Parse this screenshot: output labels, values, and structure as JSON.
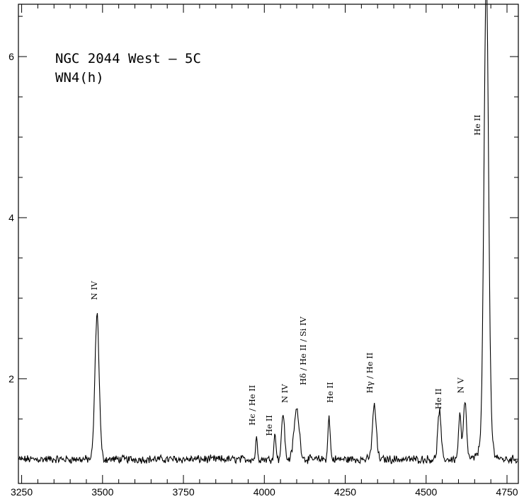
{
  "chart_data": {
    "type": "line",
    "title_lines": [
      "NGC 2044 West – 5C",
      "WN4(h)"
    ],
    "xlim": [
      3240,
      4785
    ],
    "ylim": [
      0.7,
      6.65
    ],
    "x_ticks": [
      3250,
      3500,
      3750,
      4000,
      4250,
      4500,
      4750
    ],
    "y_ticks": [
      2,
      4,
      6
    ],
    "x_minor_step": 50,
    "y_minor_step": 0.5,
    "continuum": 1.0,
    "noise_amplitude": 0.04,
    "grid": false,
    "legend": "none",
    "emission_lines": [
      {
        "x": 3483,
        "peak": 1.8,
        "sigma": 6.5
      },
      {
        "x": 3976,
        "peak": 0.26,
        "sigma": 3.0
      },
      {
        "x": 4033,
        "peak": 0.3,
        "sigma": 3.5
      },
      {
        "x": 4058,
        "peak": 0.58,
        "sigma": 4.5
      },
      {
        "x": 4100,
        "peak": 0.62,
        "sigma": 8.0
      },
      {
        "x": 4200,
        "peak": 0.52,
        "sigma": 3.5
      },
      {
        "x": 4340,
        "peak": 0.66,
        "sigma": 6.0
      },
      {
        "x": 4541,
        "peak": 0.6,
        "sigma": 5.0
      },
      {
        "x": 4604,
        "peak": 0.55,
        "sigma": 4.0
      },
      {
        "x": 4620,
        "peak": 0.7,
        "sigma": 5.0
      },
      {
        "x": 4686,
        "peak": 5.62,
        "sigma": 7.0
      },
      {
        "x": 4686,
        "peak": 0.3,
        "sigma": 16.0
      }
    ],
    "annotations": [
      {
        "text": "N IV",
        "x": 3483,
        "y": 2.98
      },
      {
        "text": "Hϵ / He II",
        "x": 3971,
        "y": 1.42
      },
      {
        "text": "He II",
        "x": 4023,
        "y": 1.29
      },
      {
        "text": "N IV",
        "x": 4072,
        "y": 1.7
      },
      {
        "text": "Hδ / He II / Si IV",
        "x": 4128,
        "y": 1.92
      },
      {
        "text": "He II",
        "x": 4212,
        "y": 1.7
      },
      {
        "text": "Hγ / He II",
        "x": 4334,
        "y": 1.82
      },
      {
        "text": "He II",
        "x": 4546,
        "y": 1.62
      },
      {
        "text": "N V",
        "x": 4615,
        "y": 1.82
      },
      {
        "text": "He II",
        "x": 4667,
        "y": 5.02
      }
    ]
  },
  "colors": {
    "line": "#000000",
    "axes": "#000000",
    "background": "#ffffff"
  }
}
